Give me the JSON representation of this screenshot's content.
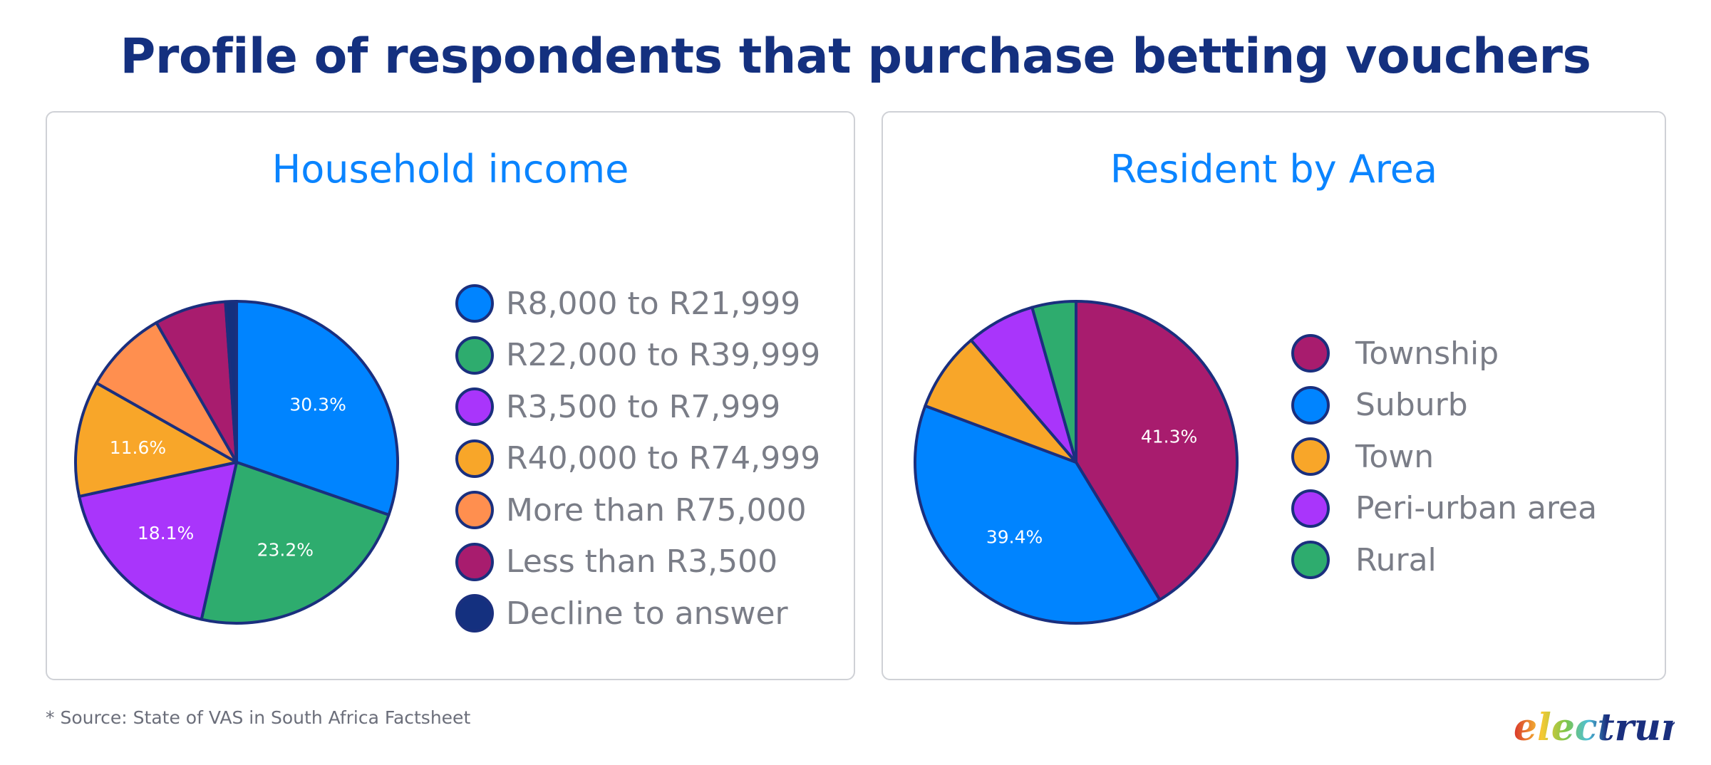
{
  "title": "Profile of respondents that purchase betting vouchers",
  "footer": "* Source: State of VAS in South Africa Factsheet",
  "logo_text": "electrum",
  "colors": {
    "title": "#14307f",
    "panel_title": "#0a84ff",
    "slice_border": "#1a2f7e"
  },
  "chart_data": [
    {
      "type": "pie",
      "title": "Household income",
      "legend_placement": "right",
      "slices": [
        {
          "label": "R8,000 to R21,999",
          "value": 30.3,
          "data_label": "30.3%",
          "color": "#0084ff"
        },
        {
          "label": "R22,000 to R39,999",
          "value": 23.2,
          "data_label": "23.2%",
          "color": "#2eac6e"
        },
        {
          "label": "R3,500 to R7,999",
          "value": 18.1,
          "data_label": "18.1%",
          "color": "#a935fb"
        },
        {
          "label": "R40,000 to R74,999",
          "value": 11.6,
          "data_label": "11.6%",
          "color": "#f8a629"
        },
        {
          "label": "More than R75,000",
          "value": 8.5,
          "data_label": "",
          "color": "#ff8f4f"
        },
        {
          "label": "Less than R3,500",
          "value": 7.2,
          "data_label": "",
          "color": "#a81c6e"
        },
        {
          "label": "Decline to answer",
          "value": 1.1,
          "data_label": "",
          "color": "#14307f"
        }
      ]
    },
    {
      "type": "pie",
      "title": "Resident by Area",
      "legend_placement": "right",
      "slices": [
        {
          "label": "Township",
          "value": 41.3,
          "data_label": "41.3%",
          "color": "#a81c6e"
        },
        {
          "label": "Suburb",
          "value": 39.4,
          "data_label": "39.4%",
          "color": "#0084ff"
        },
        {
          "label": "Town",
          "value": 8.0,
          "data_label": "",
          "color": "#f8a629"
        },
        {
          "label": "Peri-urban area",
          "value": 6.9,
          "data_label": "",
          "color": "#a935fb"
        },
        {
          "label": "Rural",
          "value": 4.4,
          "data_label": "",
          "color": "#2eac6e"
        }
      ]
    }
  ]
}
